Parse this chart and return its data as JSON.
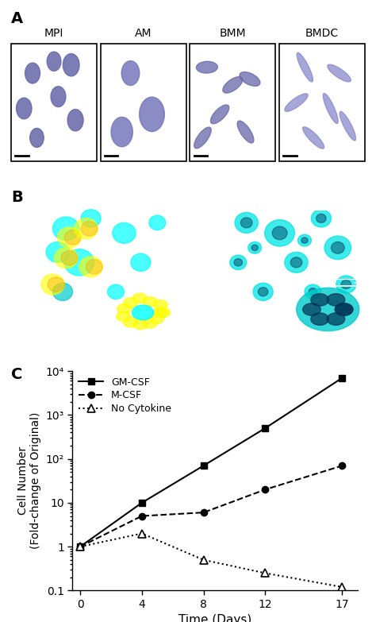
{
  "panel_labels": [
    "A",
    "B",
    "C"
  ],
  "panel_A_labels": [
    "MPI",
    "AM",
    "BMM",
    "BMDC"
  ],
  "gm_csf_x": [
    0,
    4,
    8,
    12,
    17
  ],
  "gm_csf_y": [
    1,
    10,
    70,
    500,
    7000
  ],
  "m_csf_x": [
    0,
    4,
    8,
    12,
    17
  ],
  "m_csf_y": [
    1,
    5,
    6,
    20,
    70
  ],
  "no_cytokine_x": [
    0,
    4,
    8,
    12,
    17
  ],
  "no_cytokine_y": [
    1,
    2,
    0.5,
    0.25,
    0.12
  ],
  "ylabel": "Cell Number\n(Fold-change of Original)",
  "xlabel": "Time (Days)",
  "ylim_min": 0.1,
  "ylim_max": 10000,
  "yticks": [
    0.1,
    1,
    10,
    100,
    1000,
    10000
  ],
  "ytick_labels": [
    "0.1",
    "1",
    "10",
    "10²",
    "10³",
    "10⁴"
  ],
  "xticks": [
    0,
    4,
    8,
    12,
    17
  ],
  "legend_labels": [
    "GM-CSF",
    "M-CSF",
    "No Cytokine"
  ],
  "background_color": "#ffffff"
}
